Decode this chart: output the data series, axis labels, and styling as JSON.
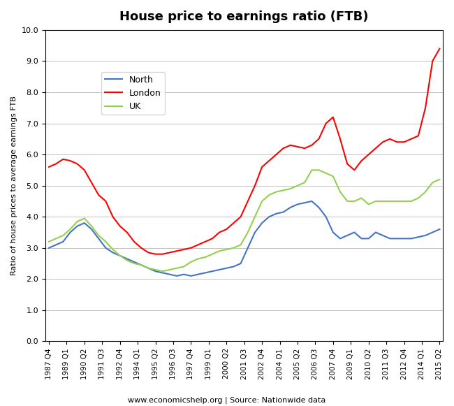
{
  "title": "House price to earnings ratio (FTB)",
  "ylabel": "Ratio of house prices to average earnings FTB",
  "xlabel_source": "www.economicshelp.org | Source: Nationwide data",
  "ylim": [
    0.0,
    10.0
  ],
  "yticks": [
    0.0,
    1.0,
    2.0,
    3.0,
    4.0,
    5.0,
    6.0,
    7.0,
    8.0,
    9.0,
    10.0
  ],
  "xtick_labels": [
    "1987 Q4",
    "1989 Q1",
    "1990 Q2",
    "1991 Q3",
    "1992 Q4",
    "1994 Q1",
    "1995 Q2",
    "1996 Q3",
    "1997 Q4",
    "1999 Q1",
    "2000 Q2",
    "2001 Q3",
    "2002 Q4",
    "2004 Q1",
    "2005 Q2",
    "2006 Q3",
    "2007 Q4",
    "2009 Q1",
    "2010 Q2",
    "2011 Q3",
    "2012 Q4",
    "2014 Q1",
    "2015 Q2"
  ],
  "legend_labels": [
    "North",
    "London",
    "UK"
  ],
  "line_colors": [
    "#4472C4",
    "#FF0000",
    "#92D050"
  ],
  "north": [
    3.0,
    3.1,
    3.2,
    3.5,
    3.7,
    3.8,
    3.6,
    3.3,
    3.0,
    2.85,
    2.75,
    2.65,
    2.55,
    2.45,
    2.35,
    2.25,
    2.2,
    2.15,
    2.1,
    2.15,
    2.1,
    2.15,
    2.2,
    2.25,
    2.3,
    2.35,
    2.4,
    2.5,
    3.0,
    3.5,
    3.8,
    4.0,
    4.1,
    4.15,
    4.3,
    4.4,
    4.45,
    4.5,
    4.3,
    4.0,
    3.5,
    3.3,
    3.4,
    3.5,
    3.3,
    3.3,
    3.5,
    3.4,
    3.3,
    3.3,
    3.3,
    3.3,
    3.35,
    3.4,
    3.5,
    3.6
  ],
  "london": [
    5.6,
    5.7,
    5.85,
    5.8,
    5.7,
    5.5,
    5.1,
    4.7,
    4.5,
    4.0,
    3.7,
    3.5,
    3.2,
    3.0,
    2.85,
    2.8,
    2.8,
    2.85,
    2.9,
    2.95,
    3.0,
    3.1,
    3.2,
    3.3,
    3.5,
    3.6,
    3.8,
    4.0,
    4.5,
    5.0,
    5.6,
    5.8,
    6.0,
    6.2,
    6.3,
    6.25,
    6.2,
    6.3,
    6.5,
    7.0,
    7.2,
    6.5,
    5.7,
    5.5,
    5.8,
    6.0,
    6.2,
    6.4,
    6.5,
    6.4,
    6.4,
    6.5,
    6.6,
    7.5,
    9.0,
    9.4
  ],
  "uk": [
    3.2,
    3.3,
    3.4,
    3.6,
    3.85,
    3.95,
    3.7,
    3.4,
    3.2,
    2.95,
    2.75,
    2.6,
    2.5,
    2.45,
    2.35,
    2.3,
    2.25,
    2.3,
    2.35,
    2.4,
    2.55,
    2.65,
    2.7,
    2.8,
    2.9,
    2.95,
    3.0,
    3.1,
    3.5,
    4.0,
    4.5,
    4.7,
    4.8,
    4.85,
    4.9,
    5.0,
    5.1,
    5.5,
    5.5,
    5.4,
    5.3,
    4.8,
    4.5,
    4.5,
    4.6,
    4.4,
    4.5,
    4.5,
    4.5,
    4.5,
    4.5,
    4.5,
    4.6,
    4.8,
    5.1,
    5.2
  ],
  "n_points": 56
}
